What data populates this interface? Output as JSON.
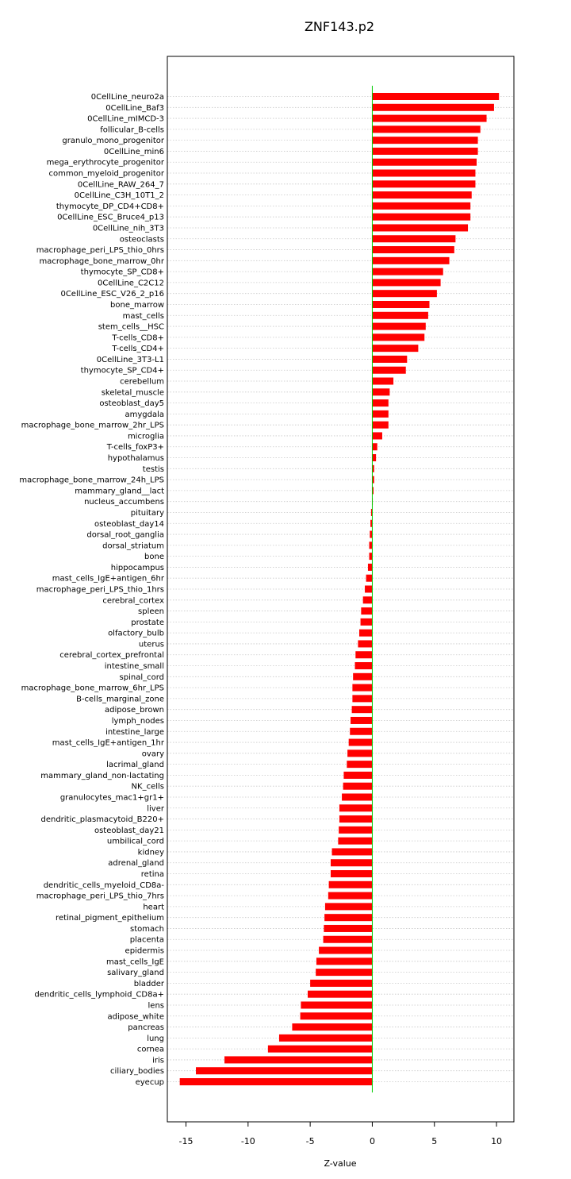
{
  "chart_data": {
    "type": "bar",
    "orientation": "horizontal",
    "title": "ZNF143.p2",
    "xlabel": "Z-value",
    "ylabel": "",
    "xlim": [
      -16.5,
      11.4
    ],
    "xticks": [
      -15,
      -10,
      -5,
      0,
      5,
      10
    ],
    "xtick_labels": [
      "-15",
      "-10",
      "-5",
      "0",
      "5",
      "10"
    ],
    "grid": "horizontal dotted",
    "bar_color": "#ff0000",
    "zero_line_color": "#00cc00",
    "categories": [
      "0CellLine_neuro2a",
      "0CellLine_Baf3",
      "0CellLine_mIMCD-3",
      "follicular_B-cells",
      "granulo_mono_progenitor",
      "0CellLine_min6",
      "mega_erythrocyte_progenitor",
      "common_myeloid_progenitor",
      "0CellLine_RAW_264_7",
      "0CellLine_C3H_10T1_2",
      "thymocyte_DP_CD4+CD8+",
      "0CellLine_ESC_Bruce4_p13",
      "0CellLine_nih_3T3",
      "osteoclasts",
      "macrophage_peri_LPS_thio_0hrs",
      "macrophage_bone_marrow_0hr",
      "thymocyte_SP_CD8+",
      "0CellLine_C2C12",
      "0CellLine_ESC_V26_2_p16",
      "bone_marrow",
      "mast_cells",
      "stem_cells__HSC",
      "T-cells_CD8+",
      "T-cells_CD4+",
      "0CellLine_3T3-L1",
      "thymocyte_SP_CD4+",
      "cerebellum",
      "skeletal_muscle",
      "osteoblast_day5",
      "amygdala",
      "macrophage_bone_marrow_2hr_LPS",
      "microglia",
      "T-cells_foxP3+",
      "hypothalamus",
      "testis",
      "macrophage_bone_marrow_24h_LPS",
      "mammary_gland__lact",
      "nucleus_accumbens",
      "pituitary",
      "osteoblast_day14",
      "dorsal_root_ganglia",
      "dorsal_striatum",
      "bone",
      "hippocampus",
      "mast_cells_IgE+antigen_6hr",
      "macrophage_peri_LPS_thio_1hrs",
      "cerebral_cortex",
      "spleen",
      "prostate",
      "olfactory_bulb",
      "uterus",
      "cerebral_cortex_prefrontal",
      "intestine_small",
      "spinal_cord",
      "macrophage_bone_marrow_6hr_LPS",
      "B-cells_marginal_zone",
      "adipose_brown",
      "lymph_nodes",
      "intestine_large",
      "mast_cells_IgE+antigen_1hr",
      "ovary",
      "lacrimal_gland",
      "mammary_gland_non-lactating",
      "NK_cells",
      "granulocytes_mac1+gr1+",
      "liver",
      "dendritic_plasmacytoid_B220+",
      "osteoblast_day21",
      "umbilical_cord",
      "kidney",
      "adrenal_gland",
      "retina",
      "dendritic_cells_myeloid_CD8a-",
      "macrophage_peri_LPS_thio_7hrs",
      "heart",
      "retinal_pigment_epithelium",
      "stomach",
      "placenta",
      "epidermis",
      "mast_cells_IgE",
      "salivary_gland",
      "bladder",
      "dendritic_cells_lymphoid_CD8a+",
      "lens",
      "adipose_white",
      "pancreas",
      "lung",
      "cornea",
      "iris",
      "ciliary_bodies",
      "eyecup"
    ],
    "values": [
      10.2,
      9.8,
      9.2,
      8.7,
      8.5,
      8.5,
      8.4,
      8.3,
      8.3,
      8.0,
      7.9,
      7.9,
      7.7,
      6.7,
      6.6,
      6.2,
      5.7,
      5.5,
      5.2,
      4.6,
      4.5,
      4.3,
      4.2,
      3.7,
      2.8,
      2.7,
      1.7,
      1.4,
      1.3,
      1.3,
      1.3,
      0.8,
      0.4,
      0.3,
      0.15,
      0.15,
      0.1,
      0.02,
      -0.1,
      -0.15,
      -0.2,
      -0.25,
      -0.25,
      -0.35,
      -0.5,
      -0.6,
      -0.75,
      -0.9,
      -0.95,
      -1.05,
      -1.15,
      -1.35,
      -1.4,
      -1.55,
      -1.6,
      -1.6,
      -1.65,
      -1.75,
      -1.8,
      -1.9,
      -2.0,
      -2.05,
      -2.3,
      -2.35,
      -2.45,
      -2.65,
      -2.65,
      -2.7,
      -2.75,
      -3.25,
      -3.35,
      -3.35,
      -3.5,
      -3.55,
      -3.8,
      -3.85,
      -3.9,
      -3.95,
      -4.3,
      -4.5,
      -4.55,
      -5.0,
      -5.2,
      -5.75,
      -5.8,
      -6.45,
      -7.5,
      -8.4,
      -11.9,
      -14.2,
      -15.5
    ]
  }
}
